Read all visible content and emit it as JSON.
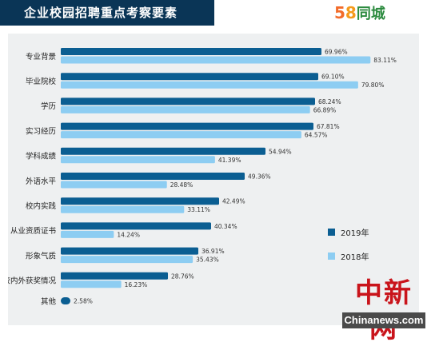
{
  "header": {
    "title": "企业校园招聘重点考察要素",
    "logo_digit_1": "5",
    "logo_digit_2": "8",
    "logo_text": "同城"
  },
  "watermark": {
    "cn": "中新网",
    "en": "Chinanews.com"
  },
  "chart_data": {
    "type": "bar",
    "orientation": "horizontal",
    "title": "企业校园招聘重点考察要素",
    "categories": [
      "专业背景",
      "毕业院校",
      "学历",
      "实习经历",
      "学科成绩",
      "外语水平",
      "校内实践",
      "从业资质证书",
      "形象气质",
      "校内外获奖情况",
      "其他"
    ],
    "series": [
      {
        "name": "2019年",
        "color": "#0b5e92",
        "values": [
          69.96,
          69.1,
          68.24,
          67.81,
          54.94,
          49.36,
          42.49,
          40.34,
          36.91,
          28.76,
          2.58
        ],
        "labels": [
          "69.96%",
          "69.10%",
          "68.24%",
          "67.81%",
          "54.94%",
          "49.36%",
          "42.49%",
          "40.34%",
          "36.91%",
          "28.76%",
          "2.58%"
        ]
      },
      {
        "name": "2018年",
        "color": "#8dcdf2",
        "values": [
          83.11,
          79.8,
          66.89,
          64.57,
          41.39,
          28.48,
          33.11,
          14.24,
          35.43,
          16.23,
          null
        ],
        "labels": [
          "83.11%",
          "79.80%",
          "66.89%",
          "64.57%",
          "41.39%",
          "28.48%",
          "33.11%",
          "14.24%",
          "35.43%",
          "16.23%",
          null
        ]
      }
    ],
    "xlim": [
      0,
      100
    ],
    "grid": false,
    "legend_position": "bottom-right"
  }
}
